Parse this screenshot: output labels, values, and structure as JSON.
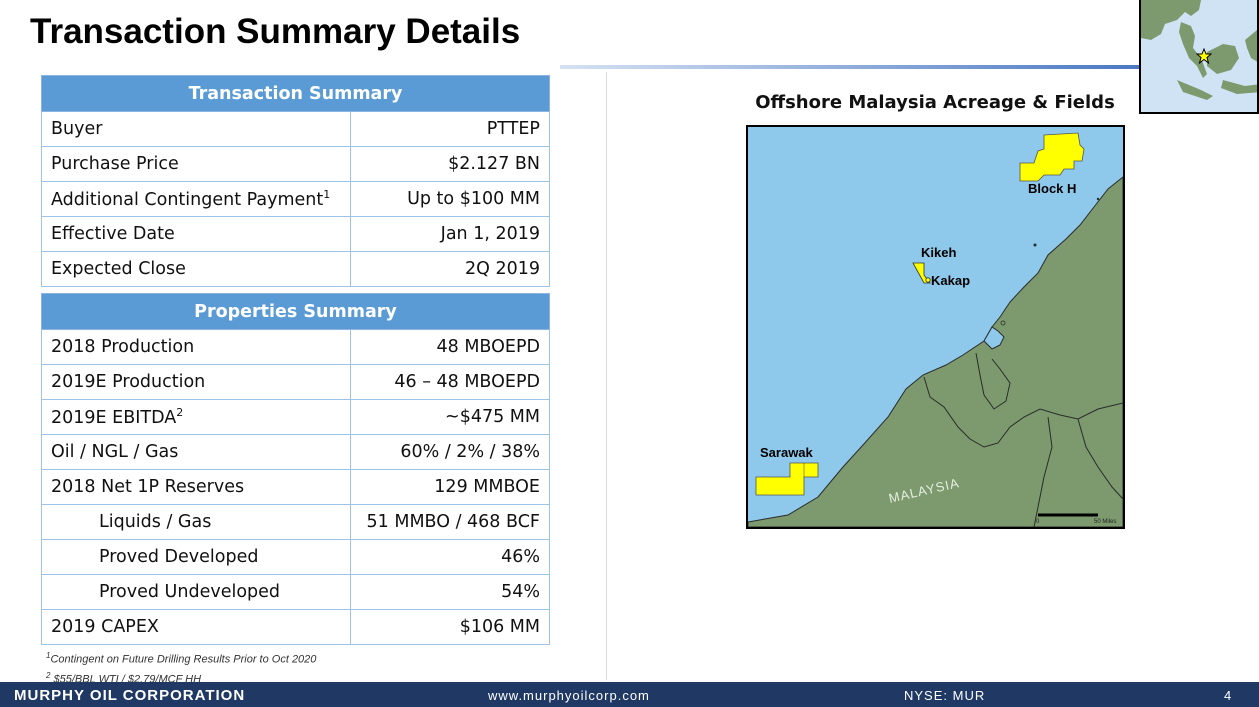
{
  "page_title": "Transaction Summary Details",
  "transaction_summary": {
    "header": "Transaction Summary",
    "rows": [
      {
        "label": "Buyer",
        "value": "PTTEP"
      },
      {
        "label": "Purchase Price",
        "value": "$2.127 BN"
      },
      {
        "label": "Additional Contingent Payment",
        "sup": "1",
        "value": "Up to $100 MM"
      },
      {
        "label": "Effective Date",
        "value": "Jan 1, 2019"
      },
      {
        "label": "Expected Close",
        "value": "2Q 2019"
      }
    ]
  },
  "properties_summary": {
    "header": "Properties Summary",
    "rows": [
      {
        "label": "2018 Production",
        "value": "48 MBOEPD"
      },
      {
        "label": "2019E Production",
        "value": "46 – 48 MBOEPD"
      },
      {
        "label": "2019E EBITDA",
        "sup": "2",
        "value": "~$475 MM"
      },
      {
        "label": "Oil / NGL / Gas",
        "value": "60% / 2% / 38%"
      },
      {
        "label": "2018 Net 1P Reserves",
        "value": "129 MMBOE"
      },
      {
        "label": "Liquids / Gas",
        "value": "51 MMBO / 468 BCF"
      },
      {
        "label": "Proved Developed",
        "value": "46%"
      },
      {
        "label": "Proved Undeveloped",
        "value": "54%"
      },
      {
        "label": "2019 CAPEX",
        "value": "$106 MM"
      }
    ]
  },
  "footnotes": {
    "note1_sup": "1",
    "note1": "Contingent on Future Drilling Results Prior to Oct 2020",
    "note2_sup": "2",
    "note2": " $55/BBL WTI / $2.79/MCF HH"
  },
  "map": {
    "title": "Offshore Malaysia Acreage & Fields",
    "labels": {
      "block_h": "Block H",
      "kikeh": "Kikeh",
      "kakap": "Kakap",
      "sarawak": "Sarawak",
      "malaysia": "MALAYSIA"
    },
    "scale": {
      "start": "0",
      "end": "50 Miles"
    },
    "colors": {
      "sea": "#8ec8ea",
      "land": "#7c9a6e",
      "acreage": "#ffff00"
    },
    "inset_marker": "star-icon"
  },
  "footer": {
    "company": "MURPHY OIL CORPORATION",
    "url": "www.murphyoilcorp.com",
    "ticker": "NYSE: MUR",
    "page_number": "4"
  }
}
